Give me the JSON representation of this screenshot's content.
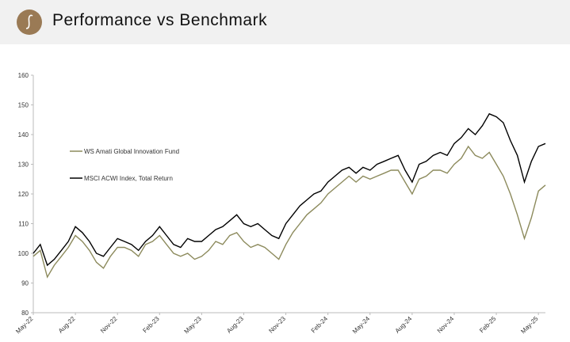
{
  "chart_data": {
    "type": "line",
    "title": "Performance vs Benchmark",
    "categories": [
      "May-22",
      null,
      null,
      null,
      null,
      null,
      "Aug-22",
      null,
      null,
      null,
      null,
      null,
      "Nov-22",
      null,
      null,
      null,
      null,
      null,
      "Feb-23",
      null,
      null,
      null,
      null,
      null,
      "May-23",
      null,
      null,
      null,
      null,
      null,
      "Aug-23",
      null,
      null,
      null,
      null,
      null,
      "Nov-23",
      null,
      null,
      null,
      null,
      null,
      "Feb-24",
      null,
      null,
      null,
      null,
      null,
      "May-24",
      null,
      null,
      null,
      null,
      null,
      "Aug-24",
      null,
      null,
      null,
      null,
      null,
      "Nov-24",
      null,
      null,
      null,
      null,
      null,
      "Feb-25",
      null,
      null,
      null,
      null,
      null,
      "May-25",
      null
    ],
    "series": [
      {
        "name": "WS Amati Global Innovation Fund",
        "color": "#8c8a5c",
        "values": [
          99,
          101,
          92,
          96,
          99,
          102,
          106,
          104,
          101,
          97,
          95,
          99,
          102,
          102,
          101,
          99,
          103,
          104,
          106,
          103,
          100,
          99,
          100,
          98,
          99,
          101,
          104,
          103,
          106,
          107,
          104,
          102,
          103,
          102,
          100,
          98,
          103,
          107,
          110,
          113,
          115,
          117,
          120,
          122,
          124,
          126,
          124,
          126,
          125,
          126,
          127,
          128,
          128,
          124,
          120,
          125,
          126,
          128,
          128,
          127,
          130,
          132,
          136,
          133,
          132,
          134,
          130,
          126,
          120,
          113,
          105,
          112,
          121,
          123
        ]
      },
      {
        "name": "MSCI ACWI Index, Total Return",
        "color": "#000000",
        "values": [
          100,
          103,
          96,
          98,
          101,
          104,
          109,
          107,
          104,
          100,
          99,
          102,
          105,
          104,
          103,
          101,
          104,
          106,
          109,
          106,
          103,
          102,
          105,
          104,
          104,
          106,
          108,
          109,
          111,
          113,
          110,
          109,
          110,
          108,
          106,
          105,
          110,
          113,
          116,
          118,
          120,
          121,
          124,
          126,
          128,
          129,
          127,
          129,
          128,
          130,
          131,
          132,
          133,
          128,
          124,
          130,
          131,
          133,
          134,
          133,
          137,
          139,
          142,
          140,
          143,
          147,
          146,
          144,
          138,
          133,
          124,
          131,
          136,
          137
        ]
      }
    ],
    "ylim": [
      80,
      160
    ],
    "yticks": [
      80,
      90,
      100,
      110,
      120,
      130,
      140,
      150,
      160
    ]
  }
}
